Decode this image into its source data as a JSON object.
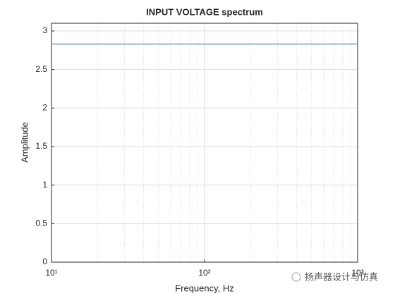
{
  "chart_data": {
    "type": "line",
    "title": "INPUT VOLTAGE spectrum",
    "x_label": "Frequency, Hz",
    "y_label": "Amplitude",
    "x": [
      10,
      1000
    ],
    "series": [
      {
        "color": "#6f9fb3",
        "values": [
          2.83,
          2.83
        ]
      }
    ],
    "xscale": "log",
    "xlim": [
      10,
      1000
    ],
    "xticks": [
      {
        "value": 10,
        "label": "10¹"
      },
      {
        "value": 100,
        "label": "10²"
      },
      {
        "value": 1000,
        "label": "10³"
      }
    ],
    "xminorticks": [
      20,
      30,
      40,
      50,
      60,
      70,
      80,
      90,
      200,
      300,
      400,
      500,
      600,
      700,
      800,
      900
    ],
    "ylim": [
      0,
      3.1
    ],
    "yticks": [
      0,
      0.5,
      1,
      1.5,
      2,
      2.5,
      3
    ],
    "grid": true
  },
  "watermark": "扬声器设计与仿真"
}
